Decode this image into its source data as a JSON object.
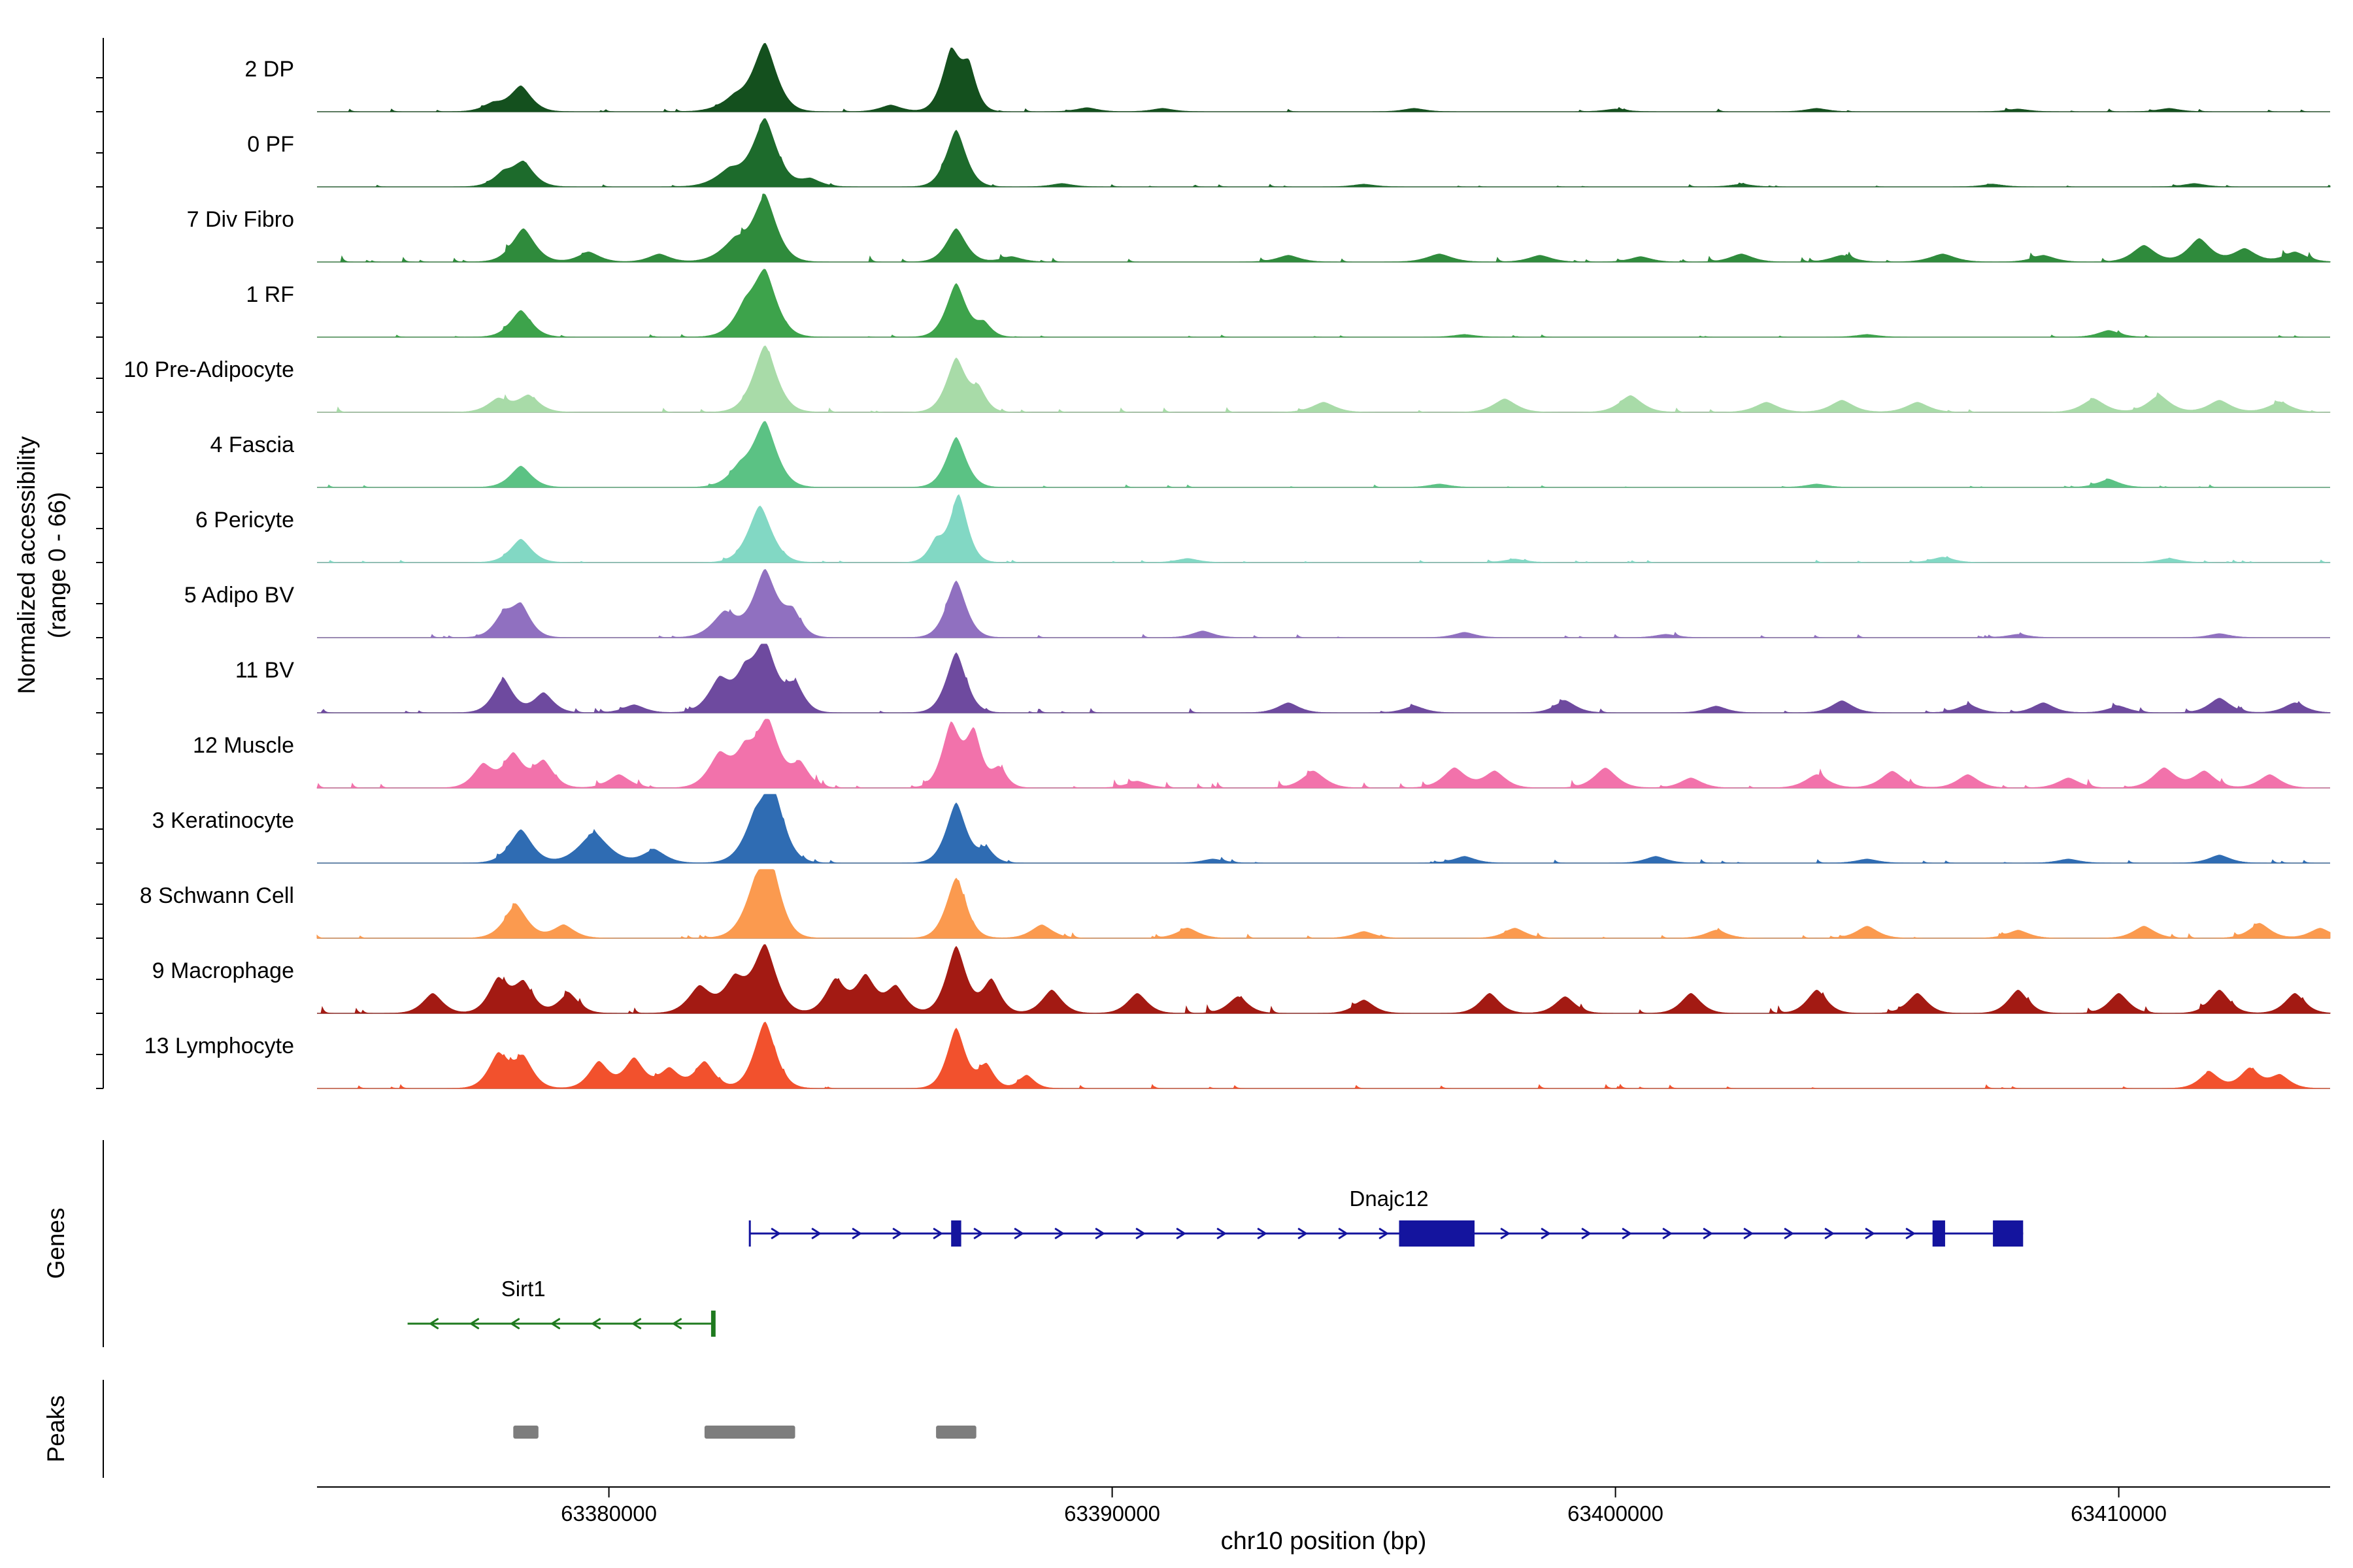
{
  "figure": {
    "ylabel_line1": "Normalized accessibility",
    "ylabel_line2": "(range 0 - 66)",
    "genes_label": "Genes",
    "peaks_label": "Peaks",
    "xlabel": "chr10 position (bp)"
  },
  "chart_data": {
    "type": "area",
    "description": "Genome browser coverage tracks of normalized chromatin accessibility per cell type over chr10, with gene models and called peak regions",
    "xlim": [
      63374200,
      63414200
    ],
    "xticks": [
      63380000,
      63390000,
      63400000,
      63410000
    ],
    "xtick_labels": [
      "63380000",
      "63390000",
      "63400000",
      "63410000"
    ],
    "y_range_per_track": [
      0,
      66
    ],
    "tracks": [
      {
        "label": "2 DP",
        "color": "#14501e",
        "noise": 0.6,
        "peaks": [
          [
            63378250,
            0.38,
            300
          ],
          [
            63377700,
            0.12,
            300
          ],
          [
            63382500,
            0.2,
            400
          ],
          [
            63383100,
            1.0,
            330
          ],
          [
            63385600,
            0.1,
            300
          ],
          [
            63386800,
            0.88,
            260
          ],
          [
            63387150,
            0.6,
            220
          ],
          [
            63389500,
            0.06,
            300
          ],
          [
            63391000,
            0.05,
            300
          ],
          [
            63396000,
            0.05,
            300
          ],
          [
            63400000,
            0.04,
            300
          ],
          [
            63404000,
            0.05,
            300
          ],
          [
            63408000,
            0.04,
            300
          ],
          [
            63411000,
            0.05,
            300
          ]
        ]
      },
      {
        "label": "0 PF",
        "color": "#1d6b2c",
        "noise": 0.5,
        "peaks": [
          [
            63377900,
            0.18,
            300
          ],
          [
            63378300,
            0.35,
            300
          ],
          [
            63382400,
            0.25,
            400
          ],
          [
            63383100,
            1.0,
            340
          ],
          [
            63384000,
            0.12,
            300
          ],
          [
            63386900,
            0.85,
            280
          ],
          [
            63389000,
            0.05,
            300
          ],
          [
            63395000,
            0.04,
            300
          ],
          [
            63402500,
            0.04,
            300
          ],
          [
            63407500,
            0.04,
            300
          ],
          [
            63411500,
            0.05,
            300
          ]
        ]
      },
      {
        "label": "7 Div Fibro",
        "color": "#2f8b3c",
        "noise": 1.2,
        "peaks": [
          [
            63378300,
            0.5,
            320
          ],
          [
            63379600,
            0.15,
            300
          ],
          [
            63381000,
            0.12,
            300
          ],
          [
            63382500,
            0.3,
            400
          ],
          [
            63383100,
            0.95,
            330
          ],
          [
            63386900,
            0.5,
            280
          ],
          [
            63388000,
            0.08,
            300
          ],
          [
            63393500,
            0.1,
            320
          ],
          [
            63396500,
            0.12,
            350
          ],
          [
            63398500,
            0.1,
            320
          ],
          [
            63400500,
            0.08,
            300
          ],
          [
            63402500,
            0.12,
            320
          ],
          [
            63404500,
            0.1,
            320
          ],
          [
            63406500,
            0.12,
            350
          ],
          [
            63408500,
            0.1,
            320
          ],
          [
            63410500,
            0.25,
            320
          ],
          [
            63411600,
            0.35,
            320
          ],
          [
            63412500,
            0.2,
            320
          ],
          [
            63413500,
            0.15,
            320
          ]
        ]
      },
      {
        "label": "1 RF",
        "color": "#3da34b",
        "noise": 0.5,
        "peaks": [
          [
            63378250,
            0.4,
            300
          ],
          [
            63382700,
            0.35,
            350
          ],
          [
            63383100,
            0.92,
            330
          ],
          [
            63386900,
            0.8,
            280
          ],
          [
            63387450,
            0.2,
            220
          ],
          [
            63397000,
            0.04,
            300
          ],
          [
            63405000,
            0.04,
            300
          ],
          [
            63409800,
            0.1,
            300
          ]
        ]
      },
      {
        "label": "10 Pre-Adipocyte",
        "color": "#a8dba8",
        "noise": 1.0,
        "peaks": [
          [
            63377800,
            0.2,
            300
          ],
          [
            63378400,
            0.25,
            300
          ],
          [
            63383100,
            1.0,
            330
          ],
          [
            63386900,
            0.8,
            280
          ],
          [
            63387350,
            0.3,
            220
          ],
          [
            63394200,
            0.15,
            320
          ],
          [
            63397800,
            0.2,
            320
          ],
          [
            63400300,
            0.25,
            320
          ],
          [
            63403000,
            0.15,
            320
          ],
          [
            63404500,
            0.18,
            320
          ],
          [
            63406000,
            0.15,
            320
          ],
          [
            63409500,
            0.2,
            320
          ],
          [
            63410800,
            0.25,
            320
          ],
          [
            63412000,
            0.18,
            320
          ],
          [
            63413200,
            0.15,
            320
          ]
        ]
      },
      {
        "label": "4 Fascia",
        "color": "#5bc284",
        "noise": 0.5,
        "peaks": [
          [
            63378250,
            0.32,
            300
          ],
          [
            63382600,
            0.25,
            350
          ],
          [
            63383100,
            0.95,
            330
          ],
          [
            63386900,
            0.75,
            280
          ],
          [
            63396500,
            0.05,
            300
          ],
          [
            63404000,
            0.05,
            300
          ],
          [
            63409800,
            0.12,
            300
          ]
        ]
      },
      {
        "label": "6 Pericyte",
        "color": "#82d8c4",
        "noise": 0.5,
        "peaks": [
          [
            63378250,
            0.35,
            300
          ],
          [
            63383000,
            0.85,
            330
          ],
          [
            63386500,
            0.3,
            220
          ],
          [
            63386950,
            1.0,
            250
          ],
          [
            63391500,
            0.06,
            300
          ],
          [
            63398000,
            0.05,
            300
          ],
          [
            63406500,
            0.08,
            300
          ],
          [
            63411000,
            0.06,
            300
          ]
        ]
      },
      {
        "label": "5 Adipo BV",
        "color": "#9070c0",
        "noise": 0.7,
        "peaks": [
          [
            63377900,
            0.3,
            280
          ],
          [
            63378250,
            0.45,
            280
          ],
          [
            63382300,
            0.38,
            350
          ],
          [
            63383100,
            1.0,
            330
          ],
          [
            63383650,
            0.35,
            260
          ],
          [
            63386900,
            0.85,
            280
          ],
          [
            63391800,
            0.1,
            300
          ],
          [
            63397000,
            0.08,
            300
          ],
          [
            63401000,
            0.05,
            300
          ],
          [
            63408000,
            0.05,
            300
          ],
          [
            63412000,
            0.06,
            300
          ]
        ]
      },
      {
        "label": "11 BV",
        "color": "#6e4a9f",
        "noise": 0.9,
        "peaks": [
          [
            63377900,
            0.5,
            280
          ],
          [
            63378700,
            0.3,
            280
          ],
          [
            63380500,
            0.12,
            300
          ],
          [
            63382200,
            0.5,
            320
          ],
          [
            63382700,
            0.45,
            280
          ],
          [
            63383100,
            1.0,
            320
          ],
          [
            63383700,
            0.4,
            260
          ],
          [
            63386900,
            0.9,
            280
          ],
          [
            63393500,
            0.15,
            300
          ],
          [
            63396000,
            0.1,
            300
          ],
          [
            63399000,
            0.18,
            300
          ],
          [
            63402000,
            0.1,
            300
          ],
          [
            63404500,
            0.18,
            300
          ],
          [
            63407000,
            0.12,
            300
          ],
          [
            63408500,
            0.15,
            300
          ],
          [
            63410000,
            0.1,
            300
          ],
          [
            63412000,
            0.22,
            300
          ],
          [
            63413500,
            0.15,
            300
          ]
        ]
      },
      {
        "label": "12 Muscle",
        "color": "#f272ab",
        "noise": 1.3,
        "peaks": [
          [
            63377500,
            0.35,
            280
          ],
          [
            63378100,
            0.5,
            280
          ],
          [
            63378700,
            0.4,
            280
          ],
          [
            63380200,
            0.2,
            300
          ],
          [
            63382200,
            0.5,
            320
          ],
          [
            63382700,
            0.45,
            280
          ],
          [
            63383150,
            1.0,
            320
          ],
          [
            63383800,
            0.35,
            260
          ],
          [
            63386800,
            0.95,
            260
          ],
          [
            63387250,
            0.8,
            220
          ],
          [
            63387750,
            0.3,
            220
          ],
          [
            63390500,
            0.1,
            300
          ],
          [
            63394000,
            0.25,
            320
          ],
          [
            63396800,
            0.3,
            320
          ],
          [
            63397600,
            0.25,
            300
          ],
          [
            63399800,
            0.3,
            320
          ],
          [
            63401500,
            0.15,
            300
          ],
          [
            63404000,
            0.2,
            320
          ],
          [
            63405500,
            0.25,
            320
          ],
          [
            63407000,
            0.2,
            300
          ],
          [
            63409000,
            0.15,
            300
          ],
          [
            63410900,
            0.3,
            320
          ],
          [
            63411700,
            0.25,
            300
          ],
          [
            63413000,
            0.2,
            300
          ]
        ]
      },
      {
        "label": "3 Keratinocyte",
        "color": "#2f6cb3",
        "noise": 0.7,
        "peaks": [
          [
            63378250,
            0.5,
            320
          ],
          [
            63379700,
            0.45,
            420
          ],
          [
            63380900,
            0.2,
            320
          ],
          [
            63382900,
            0.5,
            350
          ],
          [
            63383250,
            1.0,
            320
          ],
          [
            63386900,
            0.9,
            280
          ],
          [
            63387500,
            0.2,
            220
          ],
          [
            63392000,
            0.06,
            300
          ],
          [
            63397000,
            0.1,
            300
          ],
          [
            63400800,
            0.1,
            300
          ],
          [
            63405000,
            0.06,
            300
          ],
          [
            63409000,
            0.06,
            300
          ],
          [
            63412000,
            0.12,
            300
          ]
        ]
      },
      {
        "label": "8 Schwann Cell",
        "color": "#fb9a4f",
        "noise": 0.9,
        "peaks": [
          [
            63378150,
            0.5,
            320
          ],
          [
            63379100,
            0.2,
            300
          ],
          [
            63382900,
            0.55,
            350
          ],
          [
            63383200,
            1.0,
            300
          ],
          [
            63386900,
            0.9,
            280
          ],
          [
            63388600,
            0.2,
            300
          ],
          [
            63391500,
            0.15,
            300
          ],
          [
            63395000,
            0.1,
            300
          ],
          [
            63398000,
            0.15,
            300
          ],
          [
            63402000,
            0.12,
            300
          ],
          [
            63405000,
            0.18,
            300
          ],
          [
            63408000,
            0.12,
            300
          ],
          [
            63410500,
            0.18,
            300
          ],
          [
            63412800,
            0.22,
            300
          ],
          [
            63414000,
            0.15,
            300
          ]
        ]
      },
      {
        "label": "9 Macrophage",
        "color": "#a31a13",
        "noise": 1.5,
        "peaks": [
          [
            63376500,
            0.3,
            280
          ],
          [
            63377800,
            0.5,
            280
          ],
          [
            63378300,
            0.45,
            280
          ],
          [
            63379200,
            0.3,
            280
          ],
          [
            63381800,
            0.4,
            320
          ],
          [
            63382500,
            0.5,
            320
          ],
          [
            63383100,
            1.0,
            320
          ],
          [
            63384500,
            0.5,
            280
          ],
          [
            63385100,
            0.55,
            280
          ],
          [
            63385700,
            0.4,
            280
          ],
          [
            63386900,
            1.0,
            280
          ],
          [
            63387600,
            0.5,
            250
          ],
          [
            63388800,
            0.35,
            280
          ],
          [
            63390500,
            0.3,
            280
          ],
          [
            63392500,
            0.25,
            280
          ],
          [
            63395000,
            0.2,
            280
          ],
          [
            63397500,
            0.3,
            280
          ],
          [
            63399000,
            0.25,
            280
          ],
          [
            63401500,
            0.3,
            280
          ],
          [
            63404000,
            0.35,
            280
          ],
          [
            63406000,
            0.3,
            280
          ],
          [
            63408000,
            0.35,
            280
          ],
          [
            63410000,
            0.3,
            280
          ],
          [
            63412000,
            0.35,
            280
          ],
          [
            63413500,
            0.3,
            280
          ]
        ]
      },
      {
        "label": "13 Lymphocyte",
        "color": "#f2512d",
        "noise": 0.8,
        "peaks": [
          [
            63377800,
            0.5,
            280
          ],
          [
            63378300,
            0.45,
            280
          ],
          [
            63379800,
            0.4,
            280
          ],
          [
            63380500,
            0.45,
            280
          ],
          [
            63381200,
            0.3,
            280
          ],
          [
            63381900,
            0.4,
            280
          ],
          [
            63383100,
            1.0,
            300
          ],
          [
            63386900,
            0.9,
            260
          ],
          [
            63387500,
            0.35,
            220
          ],
          [
            63388300,
            0.2,
            220
          ],
          [
            63411800,
            0.25,
            280
          ],
          [
            63412600,
            0.3,
            280
          ],
          [
            63413200,
            0.2,
            280
          ]
        ]
      }
    ],
    "genes": [
      {
        "name": "Dnajc12",
        "strand": "+",
        "color": "#14149e",
        "start": 63382800,
        "end": 63408100,
        "tss": 63382800,
        "label_pos": 63395500,
        "exons": [
          [
            63386800,
            63387000
          ],
          [
            63395700,
            63397200
          ],
          [
            63406300,
            63406550
          ],
          [
            63407500,
            63408100
          ]
        ]
      },
      {
        "name": "Sirt1",
        "strand": "-",
        "color": "#1f7a1f",
        "start": 63376000,
        "end": 63382100,
        "tss": 63382100,
        "label_pos": 63378300,
        "exons": [
          [
            63382030,
            63382100
          ]
        ]
      }
    ],
    "peak_regions": [
      [
        63378100,
        63378600
      ],
      [
        63381900,
        63383700
      ],
      [
        63386500,
        63387300
      ]
    ],
    "peak_color": "#7d7d7d",
    "baseline_color": "#a3a3a3"
  }
}
